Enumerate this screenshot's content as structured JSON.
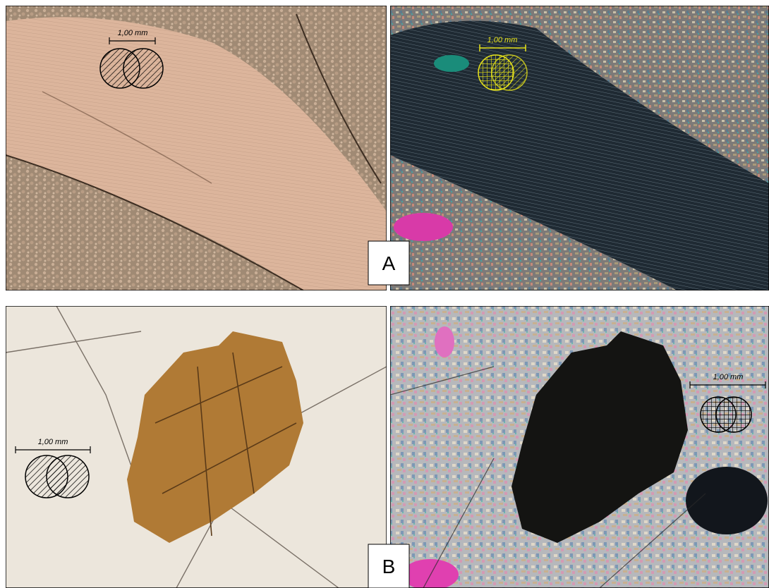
{
  "panels": [
    {
      "scale": "1,00 mm"
    },
    {
      "scale": "1,00 mm"
    },
    {
      "scale": "1,00 mm"
    },
    {
      "scale": "1,00 mm"
    }
  ],
  "labels": [
    "A",
    "B"
  ]
}
